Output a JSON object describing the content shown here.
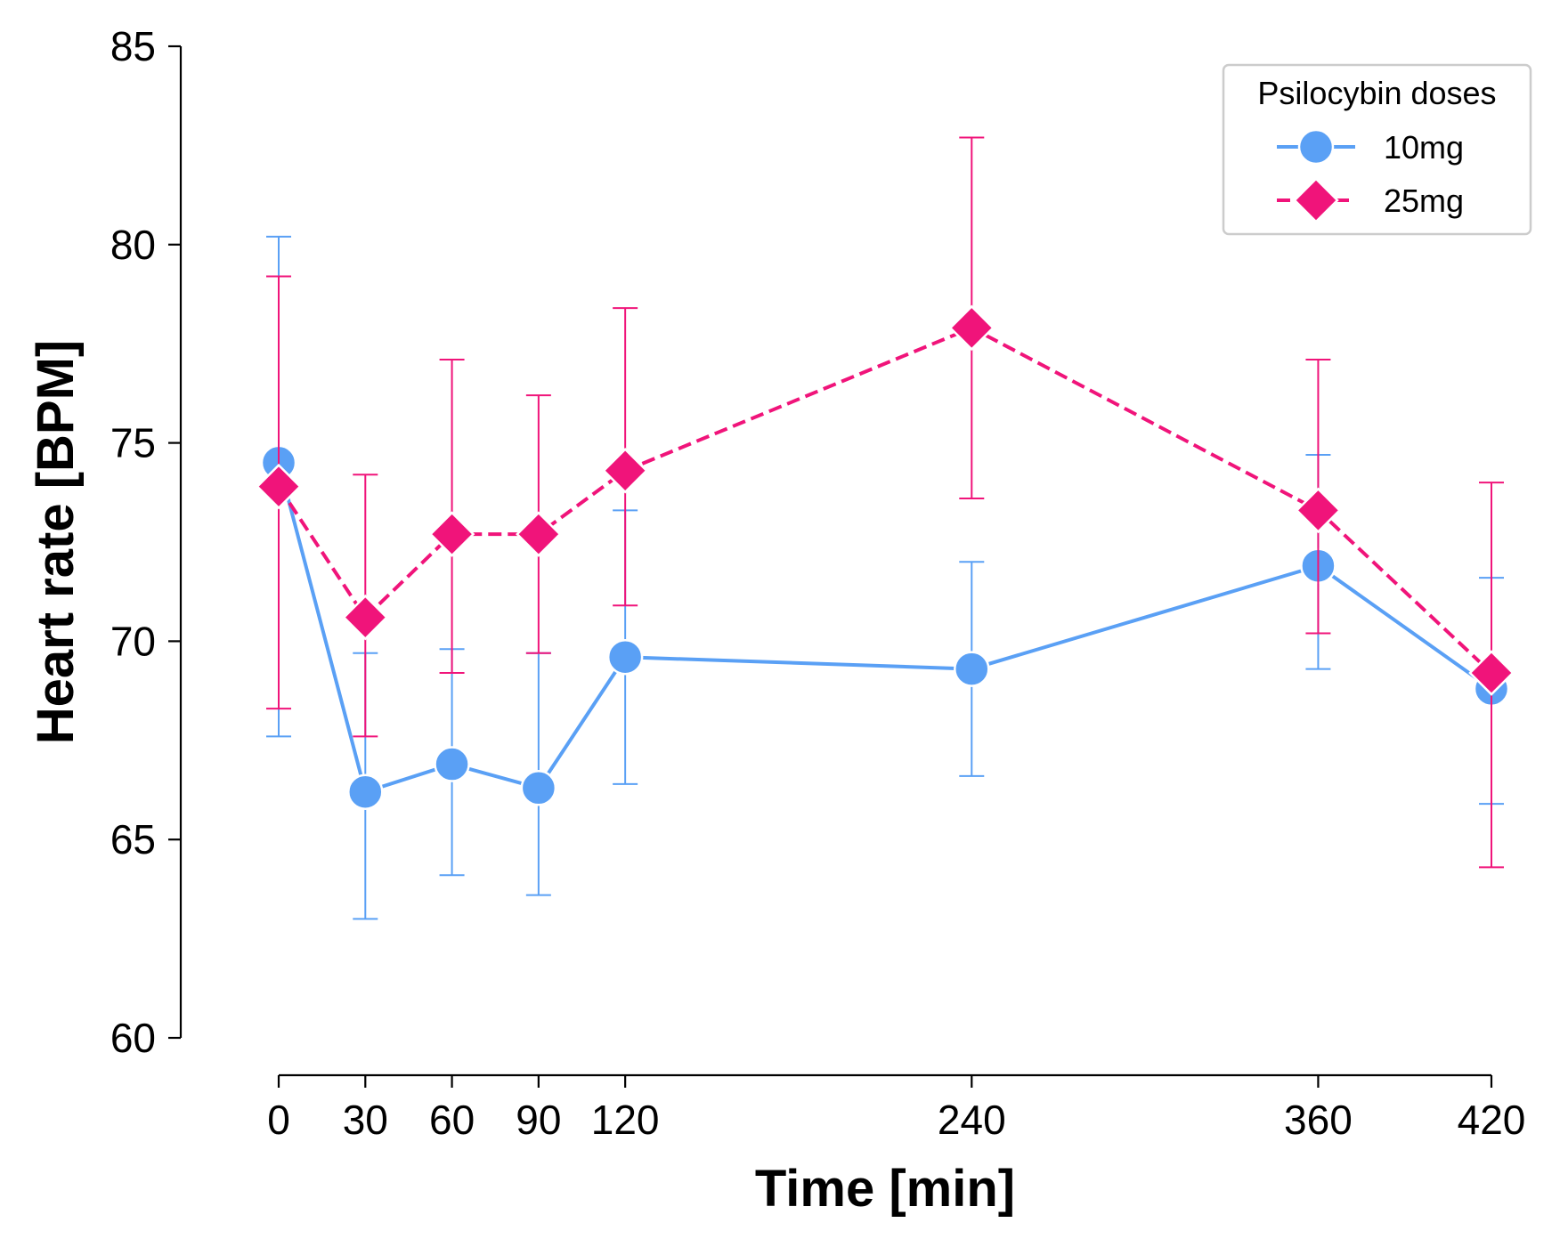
{
  "chart_data": {
    "type": "line",
    "xlabel": "Time [min]",
    "ylabel": "Heart rate [BPM]",
    "xlim": [
      0,
      420
    ],
    "ylim": [
      60,
      85
    ],
    "xticks": [
      0,
      30,
      60,
      90,
      120,
      240,
      360,
      420
    ],
    "yticks": [
      60,
      65,
      70,
      75,
      80,
      85
    ],
    "grid": false,
    "legend": {
      "title": "Psilocybin doses",
      "position": "top-right"
    },
    "x": [
      0,
      30,
      60,
      90,
      120,
      240,
      360,
      420
    ],
    "series": [
      {
        "name": "10mg",
        "color": "#5aa0f5",
        "marker": "circle",
        "linestyle": "solid",
        "values": [
          74.5,
          66.2,
          66.9,
          66.3,
          69.6,
          69.3,
          71.9,
          68.8
        ],
        "err_low": [
          67.6,
          63.0,
          64.1,
          63.6,
          66.4,
          66.6,
          69.3,
          65.9
        ],
        "err_high": [
          80.2,
          69.7,
          69.8,
          69.7,
          73.3,
          72.0,
          74.7,
          71.6
        ]
      },
      {
        "name": "25mg",
        "color": "#f0147a",
        "marker": "diamond",
        "linestyle": "dashed",
        "values": [
          73.9,
          70.6,
          72.7,
          72.7,
          74.3,
          77.9,
          73.3,
          69.2
        ],
        "err_low": [
          68.3,
          67.6,
          69.2,
          69.7,
          70.9,
          73.6,
          70.2,
          64.3
        ],
        "err_high": [
          79.2,
          74.2,
          77.1,
          76.2,
          78.4,
          82.7,
          77.1,
          74.0
        ]
      }
    ]
  }
}
